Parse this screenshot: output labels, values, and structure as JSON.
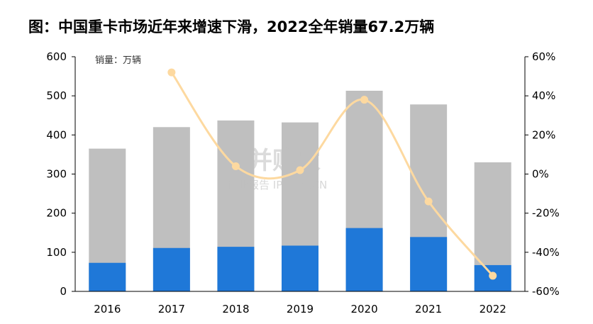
{
  "title": "图：中国重卡市场近年来增速下滑，2022全年销量67.2万辆",
  "unit_label": "销量：万辆",
  "watermark": {
    "brand": "并购家",
    "sub": "行业报告 IPOIPO.CN"
  },
  "colors": {
    "total_bar": "#bfbfbf",
    "highlight_bar": "#1f78d8",
    "growth_line": "#fdd9a0"
  },
  "chart_data": {
    "type": "bar",
    "categories": [
      "2016",
      "2017",
      "2018",
      "2019",
      "2020",
      "2021",
      "2022"
    ],
    "series": [
      {
        "values": [
          365,
          420,
          437,
          432,
          513,
          478,
          330
        ]
      },
      {
        "values": [
          73,
          111,
          114,
          117,
          162,
          139,
          67.2
        ]
      },
      {
        "values": [
          null,
          52,
          4,
          2,
          38,
          -14,
          -52
        ],
        "axis": "right"
      }
    ],
    "y_left_ticks": [
      "0",
      "100",
      "200",
      "300",
      "400",
      "500",
      "600"
    ],
    "y_right_ticks": [
      "-60%",
      "-40%",
      "-20%",
      "0%",
      "20%",
      "40%",
      "60%"
    ],
    "ylim_left": [
      0,
      600
    ],
    "ylim_right": [
      -60,
      60
    ],
    "grid": false
  }
}
